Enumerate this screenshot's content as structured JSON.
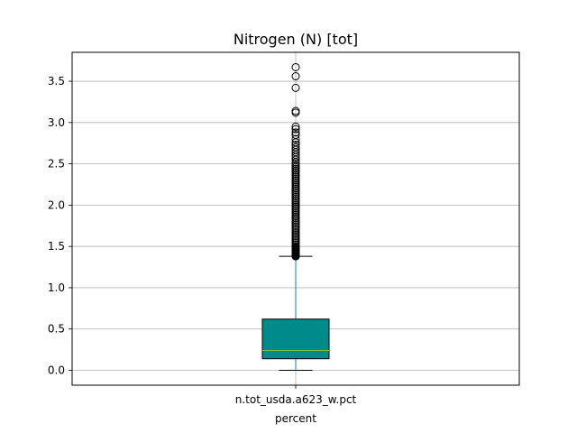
{
  "chart_data": {
    "type": "box",
    "title": "Nitrogen (N) [tot]",
    "xlabel": "percent",
    "ylabel": "",
    "categories": [
      "n.tot_usda.a623_w.pct"
    ],
    "ylim": [
      -0.18,
      3.85
    ],
    "yticks": [
      0.0,
      0.5,
      1.0,
      1.5,
      2.0,
      2.5,
      3.0,
      3.5
    ],
    "ytick_labels": [
      "0.0",
      "0.5",
      "1.0",
      "1.5",
      "2.0",
      "2.5",
      "3.0",
      "3.5"
    ],
    "grid": true,
    "box": {
      "whisker_low": 0.0,
      "q1": 0.14,
      "median": 0.24,
      "q3": 0.62,
      "whisker_high": 1.38
    },
    "outliers": [
      1.38,
      1.39,
      1.4,
      1.41,
      1.42,
      1.43,
      1.44,
      1.45,
      1.46,
      1.47,
      1.48,
      1.49,
      1.5,
      1.52,
      1.54,
      1.56,
      1.58,
      1.6,
      1.62,
      1.64,
      1.66,
      1.68,
      1.7,
      1.72,
      1.74,
      1.76,
      1.78,
      1.8,
      1.82,
      1.84,
      1.86,
      1.88,
      1.9,
      1.92,
      1.94,
      1.96,
      1.98,
      2.0,
      2.02,
      2.04,
      2.06,
      2.08,
      2.1,
      2.12,
      2.14,
      2.16,
      2.18,
      2.2,
      2.22,
      2.24,
      2.26,
      2.28,
      2.3,
      2.32,
      2.34,
      2.36,
      2.38,
      2.4,
      2.42,
      2.44,
      2.46,
      2.48,
      2.5,
      2.52,
      2.55,
      2.58,
      2.61,
      2.64,
      2.67,
      2.7,
      2.73,
      2.76,
      2.8,
      2.85,
      2.88,
      2.92,
      2.95,
      3.12,
      3.14,
      3.42,
      3.56,
      3.67
    ],
    "colors": {
      "box_fill": "#008b8b",
      "median": "#7fbf3f",
      "whisker": "#1f77b4",
      "grid": "#b0b0b0",
      "outlier_edge": "#000000"
    }
  }
}
